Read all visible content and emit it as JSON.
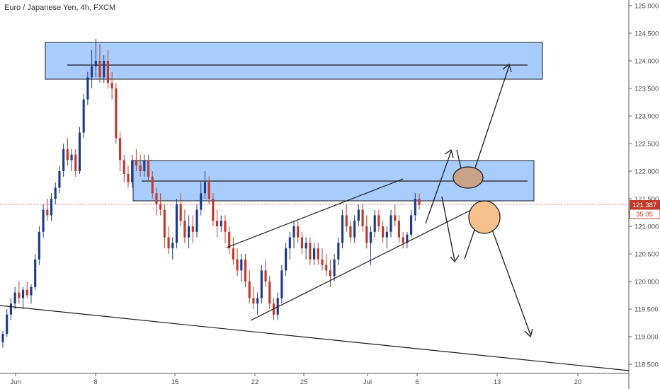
{
  "header": {
    "title": "Euro / Japanese Yen, 4h, FXCM"
  },
  "colors": {
    "bull": "#1e3a8a",
    "bear": "#c0392b",
    "zone_fill": "#a8cdfd",
    "zone_stroke": "#1a1a1a",
    "current_price_line": "#e74c3c",
    "price_tag_fill": "#c0392b",
    "timer_tag_fill": "#c0392b",
    "circle_upper_fill": "#c9a288",
    "circle_lower_fill": "#f6c08f"
  },
  "chart_data": {
    "type": "candlestick",
    "symbol": "Euro / Japanese Yen",
    "timeframe": "4h",
    "source": "FXCM",
    "x_ticks": [
      "Jun",
      "8",
      "15",
      "22",
      "25",
      "Jul",
      "6",
      "13",
      "20"
    ],
    "y_ticks": [
      "125.000",
      "124.500",
      "124.000",
      "123.500",
      "123.000",
      "122.500",
      "122.000",
      "121.500",
      "121.000",
      "120.500",
      "120.000",
      "119.500",
      "119.000",
      "118.500"
    ],
    "ylim": [
      118.3,
      125.1
    ],
    "current_price": {
      "label": "121.387",
      "value": 121.387
    },
    "countdown": {
      "label": "35:05"
    },
    "candles": [
      [
        118.9,
        119.1,
        118.8,
        119.05
      ],
      [
        119.05,
        119.5,
        119.0,
        119.4
      ],
      [
        119.4,
        119.7,
        119.3,
        119.6
      ],
      [
        119.6,
        119.9,
        119.5,
        119.8
      ],
      [
        119.8,
        120.0,
        119.6,
        119.7
      ],
      [
        119.7,
        119.9,
        119.5,
        119.85
      ],
      [
        119.85,
        120.0,
        119.7,
        119.75
      ],
      [
        119.75,
        119.95,
        119.6,
        119.9
      ],
      [
        119.9,
        120.5,
        119.85,
        120.4
      ],
      [
        120.4,
        121.0,
        120.3,
        120.9
      ],
      [
        120.9,
        121.4,
        120.8,
        121.3
      ],
      [
        121.3,
        121.5,
        121.1,
        121.2
      ],
      [
        121.2,
        121.6,
        121.1,
        121.5
      ],
      [
        121.5,
        121.8,
        121.4,
        121.7
      ],
      [
        121.7,
        122.1,
        121.6,
        122.0
      ],
      [
        122.0,
        122.5,
        121.9,
        122.4
      ],
      [
        122.4,
        122.6,
        122.1,
        122.2
      ],
      [
        122.2,
        122.4,
        122.0,
        122.3
      ],
      [
        122.3,
        122.4,
        121.9,
        122.0
      ],
      [
        122.0,
        122.8,
        121.95,
        122.7
      ],
      [
        122.7,
        123.4,
        122.6,
        123.3
      ],
      [
        123.3,
        123.8,
        123.2,
        123.7
      ],
      [
        123.7,
        124.2,
        123.5,
        123.9
      ],
      [
        123.9,
        124.4,
        123.7,
        124.0
      ],
      [
        124.0,
        124.3,
        123.6,
        123.7
      ],
      [
        123.7,
        124.1,
        123.6,
        124.0
      ],
      [
        124.0,
        124.2,
        123.5,
        123.6
      ],
      [
        123.6,
        123.8,
        123.3,
        123.5
      ],
      [
        123.5,
        123.6,
        122.5,
        122.6
      ],
      [
        122.6,
        122.7,
        122.0,
        122.2
      ],
      [
        122.2,
        122.3,
        121.8,
        121.95
      ],
      [
        121.95,
        122.1,
        121.7,
        121.8
      ],
      [
        121.8,
        122.3,
        121.7,
        122.2
      ],
      [
        122.2,
        122.4,
        122.0,
        122.1
      ],
      [
        122.1,
        122.3,
        121.9,
        122.0
      ],
      [
        122.0,
        122.3,
        121.9,
        122.2
      ],
      [
        122.2,
        122.3,
        121.8,
        121.9
      ],
      [
        121.9,
        122.0,
        121.5,
        121.6
      ],
      [
        121.6,
        121.7,
        121.2,
        121.4
      ],
      [
        121.4,
        121.6,
        121.2,
        121.3
      ],
      [
        121.3,
        121.4,
        120.6,
        120.8
      ],
      [
        120.8,
        121.0,
        120.5,
        120.6
      ],
      [
        120.6,
        120.8,
        120.4,
        120.7
      ],
      [
        120.7,
        121.5,
        120.6,
        121.4
      ],
      [
        121.4,
        121.6,
        121.0,
        121.1
      ],
      [
        121.1,
        121.3,
        120.7,
        120.8
      ],
      [
        120.8,
        121.2,
        120.6,
        121.0
      ],
      [
        121.0,
        121.2,
        120.7,
        120.9
      ],
      [
        120.9,
        121.4,
        120.8,
        121.3
      ],
      [
        121.3,
        121.8,
        121.2,
        121.6
      ],
      [
        121.6,
        122.0,
        121.5,
        121.8
      ],
      [
        121.8,
        121.9,
        121.4,
        121.5
      ],
      [
        121.5,
        121.6,
        121.0,
        121.1
      ],
      [
        121.1,
        121.3,
        120.8,
        121.0
      ],
      [
        121.0,
        121.2,
        120.9,
        121.1
      ],
      [
        121.1,
        121.2,
        120.7,
        120.9
      ],
      [
        120.9,
        121.0,
        120.5,
        120.6
      ],
      [
        120.6,
        120.8,
        120.3,
        120.4
      ],
      [
        120.4,
        120.6,
        120.1,
        120.2
      ],
      [
        120.2,
        120.5,
        120.0,
        120.4
      ],
      [
        120.4,
        120.5,
        119.9,
        120.0
      ],
      [
        120.0,
        120.2,
        119.6,
        119.7
      ],
      [
        119.7,
        119.9,
        119.5,
        119.6
      ],
      [
        119.6,
        119.8,
        119.4,
        119.7
      ],
      [
        119.7,
        120.3,
        119.6,
        120.2
      ],
      [
        120.2,
        120.4,
        119.9,
        120.0
      ],
      [
        120.0,
        120.1,
        119.5,
        119.6
      ],
      [
        119.6,
        119.7,
        119.3,
        119.4
      ],
      [
        119.4,
        119.8,
        119.3,
        119.7
      ],
      [
        119.7,
        120.3,
        119.6,
        120.2
      ],
      [
        120.2,
        120.7,
        120.1,
        120.6
      ],
      [
        120.6,
        120.9,
        120.4,
        120.8
      ],
      [
        120.8,
        121.1,
        120.6,
        121.0
      ],
      [
        121.0,
        121.1,
        120.7,
        120.8
      ],
      [
        120.8,
        120.9,
        120.5,
        120.6
      ],
      [
        120.6,
        120.8,
        120.4,
        120.7
      ],
      [
        120.7,
        120.8,
        120.3,
        120.4
      ],
      [
        120.4,
        120.7,
        120.3,
        120.6
      ],
      [
        120.6,
        120.7,
        120.3,
        120.4
      ],
      [
        120.4,
        120.6,
        120.2,
        120.3
      ],
      [
        120.3,
        120.5,
        120.1,
        120.2
      ],
      [
        120.2,
        120.4,
        119.9,
        120.1
      ],
      [
        120.1,
        120.5,
        120.0,
        120.4
      ],
      [
        120.4,
        120.8,
        120.3,
        120.7
      ],
      [
        120.7,
        121.3,
        120.6,
        121.2
      ],
      [
        121.2,
        121.4,
        120.9,
        121.0
      ],
      [
        121.0,
        121.1,
        120.7,
        120.8
      ],
      [
        120.8,
        121.2,
        120.7,
        121.1
      ],
      [
        121.1,
        121.4,
        121.0,
        121.3
      ],
      [
        121.3,
        121.4,
        120.9,
        121.0
      ],
      [
        121.0,
        121.2,
        120.6,
        120.7
      ],
      [
        120.7,
        121.0,
        120.3,
        120.9
      ],
      [
        120.9,
        121.3,
        120.8,
        121.2
      ],
      [
        121.2,
        121.3,
        120.9,
        121.0
      ],
      [
        121.0,
        121.1,
        120.7,
        120.8
      ],
      [
        120.8,
        121.0,
        120.6,
        120.9
      ],
      [
        120.9,
        121.3,
        120.8,
        121.2
      ],
      [
        121.2,
        121.4,
        121.0,
        121.1
      ],
      [
        121.1,
        121.2,
        120.7,
        120.8
      ],
      [
        120.8,
        120.9,
        120.6,
        120.7
      ],
      [
        120.7,
        120.9,
        120.6,
        120.85
      ],
      [
        120.85,
        121.3,
        120.8,
        121.2
      ],
      [
        121.2,
        121.6,
        121.1,
        121.5
      ],
      [
        121.5,
        121.6,
        121.3,
        121.387
      ]
    ]
  }
}
